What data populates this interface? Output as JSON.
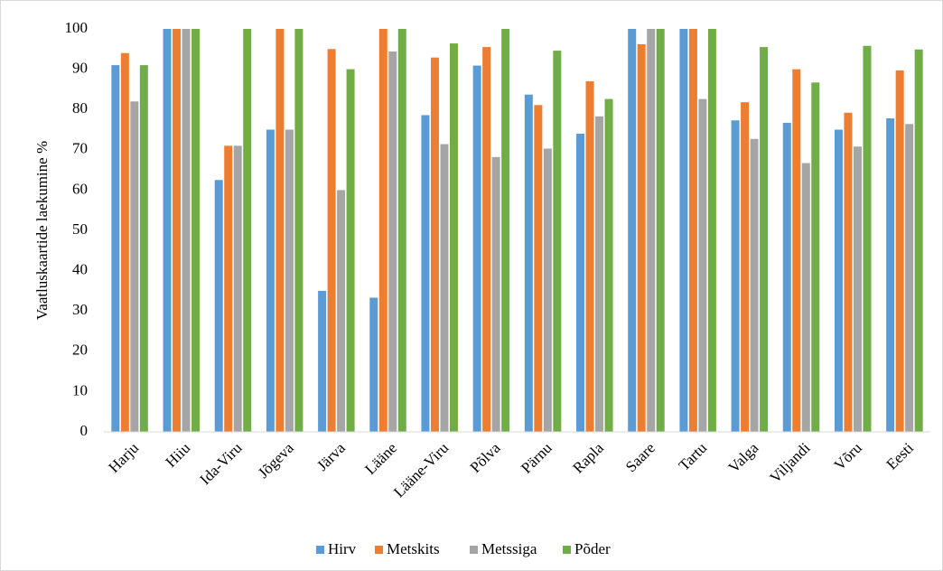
{
  "chart_data": {
    "type": "bar",
    "y_label": "Vaatluskaartide laekumine %",
    "categories": [
      "Harju",
      "Hiiu",
      "Ida-Viru",
      "Jõgeva",
      "Järva",
      "Lääne",
      "Lääne-Viru",
      "Põlva",
      "Pärnu",
      "Rapla",
      "Saare",
      "Tartu",
      "Valga",
      "Viljandi",
      "Võru",
      "Eesti"
    ],
    "series": [
      {
        "name": "Hirv",
        "color": "#5b9bd5",
        "values": [
          91,
          100,
          62.5,
          75,
          35,
          33.3,
          78.6,
          90.9,
          83.7,
          74,
          100,
          100,
          77.3,
          76.7,
          75,
          77.8
        ]
      },
      {
        "name": "Metskits",
        "color": "#ed7d31",
        "values": [
          94,
          100,
          71,
          100,
          95,
          100,
          92.9,
          95.5,
          81.1,
          87,
          96.2,
          100,
          81.8,
          90,
          79.2,
          89.7
        ]
      },
      {
        "name": "Metssiga",
        "color": "#a5a5a5",
        "values": [
          82,
          100,
          71,
          75,
          60,
          94.4,
          71.4,
          68.2,
          70.3,
          78.3,
          100,
          82.6,
          72.7,
          66.7,
          70.8,
          76.4
        ]
      },
      {
        "name": "Põder",
        "color": "#70ad47",
        "values": [
          91,
          100,
          100,
          100,
          90,
          100,
          96.4,
          100,
          94.6,
          82.6,
          100,
          100,
          95.5,
          86.7,
          95.8,
          94.9
        ]
      }
    ],
    "ylim": [
      0,
      100
    ],
    "yticks": [
      0,
      10,
      20,
      30,
      40,
      50,
      60,
      70,
      80,
      90,
      100
    ],
    "grid": false,
    "legend": "bottom"
  }
}
